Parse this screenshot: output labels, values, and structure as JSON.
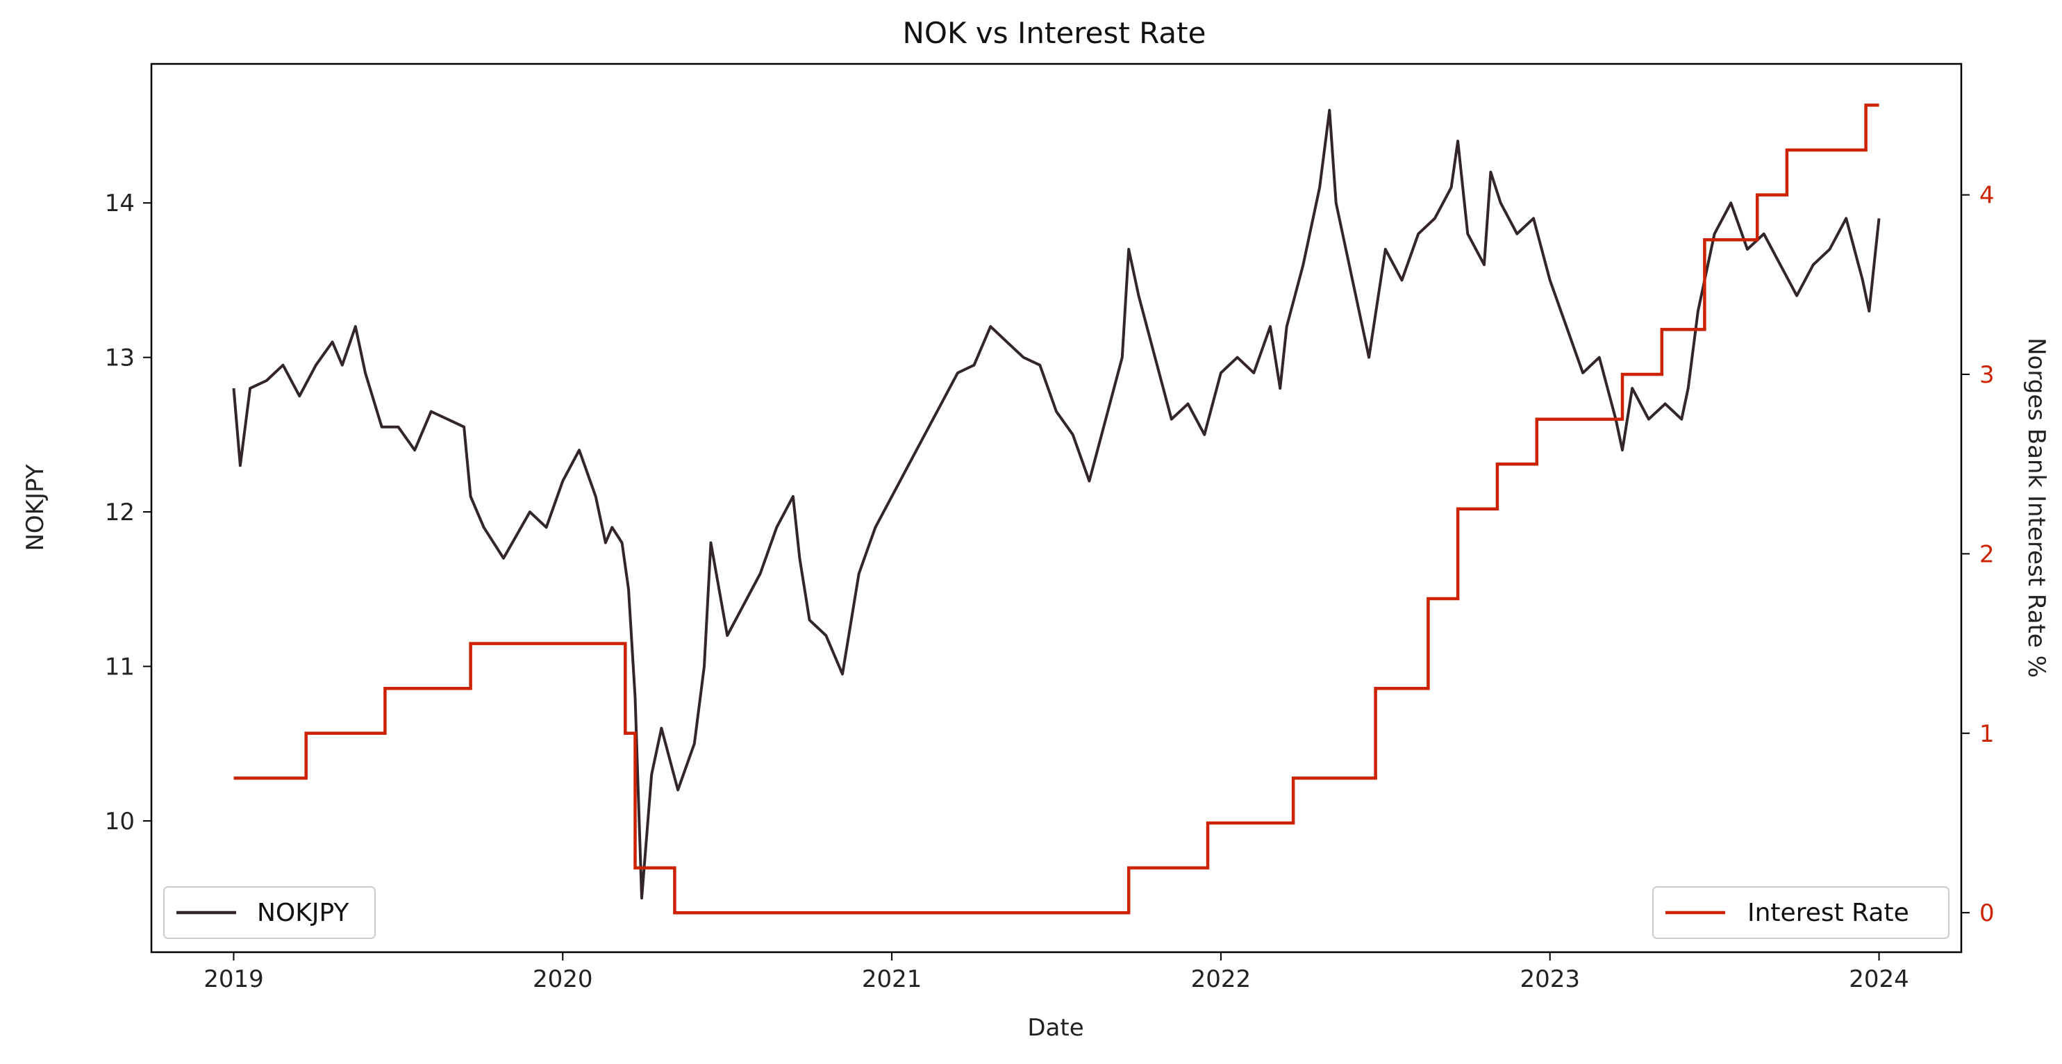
{
  "chart_data": {
    "type": "line",
    "title": "NOK vs Interest Rate",
    "xlabel": "Date",
    "ylabel_left": "NOKJPY",
    "ylabel_right": "Norges Bank Interest Rate %",
    "x_ticks": [
      "2019",
      "2020",
      "2021",
      "2022",
      "2023",
      "2024"
    ],
    "y_left_ticks": [
      "10",
      "11",
      "12",
      "13",
      "14"
    ],
    "y_right_ticks": [
      "0",
      "1",
      "2",
      "3",
      "4"
    ],
    "xlim": [
      2018.75,
      2024.25
    ],
    "ylim_left": [
      9.15,
      14.9
    ],
    "ylim_right": [
      -0.22,
      4.73
    ],
    "grid": false,
    "colors": {
      "nokjpy": "#33262b",
      "rate": "#cc2200"
    },
    "legend_left": {
      "label": "NOKJPY",
      "placement": "lower-left"
    },
    "legend_right": {
      "label": "Interest Rate",
      "placement": "lower-right"
    },
    "series": [
      {
        "name": "NOKJPY",
        "axis": "left",
        "x": [
          2019.0,
          2019.02,
          2019.05,
          2019.1,
          2019.15,
          2019.2,
          2019.25,
          2019.3,
          2019.33,
          2019.37,
          2019.4,
          2019.45,
          2019.5,
          2019.55,
          2019.6,
          2019.65,
          2019.7,
          2019.72,
          2019.76,
          2019.82,
          2019.9,
          2019.95,
          2020.0,
          2020.05,
          2020.1,
          2020.13,
          2020.15,
          2020.18,
          2020.2,
          2020.22,
          2020.24,
          2020.27,
          2020.3,
          2020.35,
          2020.4,
          2020.43,
          2020.45,
          2020.5,
          2020.55,
          2020.6,
          2020.65,
          2020.7,
          2020.72,
          2020.75,
          2020.8,
          2020.85,
          2020.9,
          2020.95,
          2021.0,
          2021.05,
          2021.1,
          2021.15,
          2021.2,
          2021.25,
          2021.3,
          2021.35,
          2021.4,
          2021.45,
          2021.5,
          2021.55,
          2021.6,
          2021.65,
          2021.7,
          2021.72,
          2021.75,
          2021.8,
          2021.85,
          2021.9,
          2021.95,
          2022.0,
          2022.05,
          2022.1,
          2022.15,
          2022.18,
          2022.2,
          2022.25,
          2022.3,
          2022.33,
          2022.35,
          2022.4,
          2022.45,
          2022.5,
          2022.55,
          2022.6,
          2022.65,
          2022.7,
          2022.72,
          2022.75,
          2022.8,
          2022.82,
          2022.85,
          2022.9,
          2022.95,
          2023.0,
          2023.05,
          2023.1,
          2023.15,
          2023.2,
          2023.22,
          2023.25,
          2023.3,
          2023.35,
          2023.4,
          2023.42,
          2023.45,
          2023.5,
          2023.55,
          2023.6,
          2023.65,
          2023.7,
          2023.75,
          2023.8,
          2023.85,
          2023.9,
          2023.95,
          2023.97,
          2024.0
        ],
        "values": [
          12.8,
          12.3,
          12.8,
          12.85,
          12.95,
          12.75,
          12.95,
          13.1,
          12.95,
          13.2,
          12.9,
          12.55,
          12.55,
          12.4,
          12.65,
          12.6,
          12.55,
          12.1,
          11.9,
          11.7,
          12.0,
          11.9,
          12.2,
          12.4,
          12.1,
          11.8,
          11.9,
          11.8,
          11.5,
          10.8,
          9.5,
          10.3,
          10.6,
          10.2,
          10.5,
          11.0,
          11.8,
          11.2,
          11.4,
          11.6,
          11.9,
          12.1,
          11.7,
          11.3,
          11.2,
          10.95,
          11.6,
          11.9,
          12.1,
          12.3,
          12.5,
          12.7,
          12.9,
          12.95,
          13.2,
          13.1,
          13.0,
          12.95,
          12.65,
          12.5,
          12.2,
          12.6,
          13.0,
          13.7,
          13.4,
          13.0,
          12.6,
          12.7,
          12.5,
          12.9,
          13.0,
          12.9,
          13.2,
          12.8,
          13.2,
          13.6,
          14.1,
          14.6,
          14.0,
          13.5,
          13.0,
          13.7,
          13.5,
          13.8,
          13.9,
          14.1,
          14.4,
          13.8,
          13.6,
          14.2,
          14.0,
          13.8,
          13.9,
          13.5,
          13.2,
          12.9,
          13.0,
          12.6,
          12.4,
          12.8,
          12.6,
          12.7,
          12.6,
          12.8,
          13.3,
          13.8,
          14.0,
          13.7,
          13.8,
          13.6,
          13.4,
          13.6,
          13.7,
          13.9,
          13.5,
          13.3,
          13.9
        ],
        "line_width": 4
      },
      {
        "name": "Interest Rate",
        "axis": "right",
        "step": "post",
        "x": [
          2019.0,
          2019.22,
          2019.46,
          2019.72,
          2020.19,
          2020.22,
          2020.34,
          2021.72,
          2021.96,
          2022.22,
          2022.47,
          2022.63,
          2022.72,
          2022.84,
          2022.96,
          2023.22,
          2023.34,
          2023.47,
          2023.63,
          2023.72,
          2023.96,
          2024.0
        ],
        "values": [
          0.75,
          1.0,
          1.25,
          1.5,
          1.0,
          0.25,
          0.0,
          0.25,
          0.5,
          0.75,
          1.25,
          1.75,
          2.25,
          2.5,
          2.75,
          3.0,
          3.25,
          3.75,
          4.0,
          4.25,
          4.5,
          4.5
        ]
      }
    ]
  }
}
